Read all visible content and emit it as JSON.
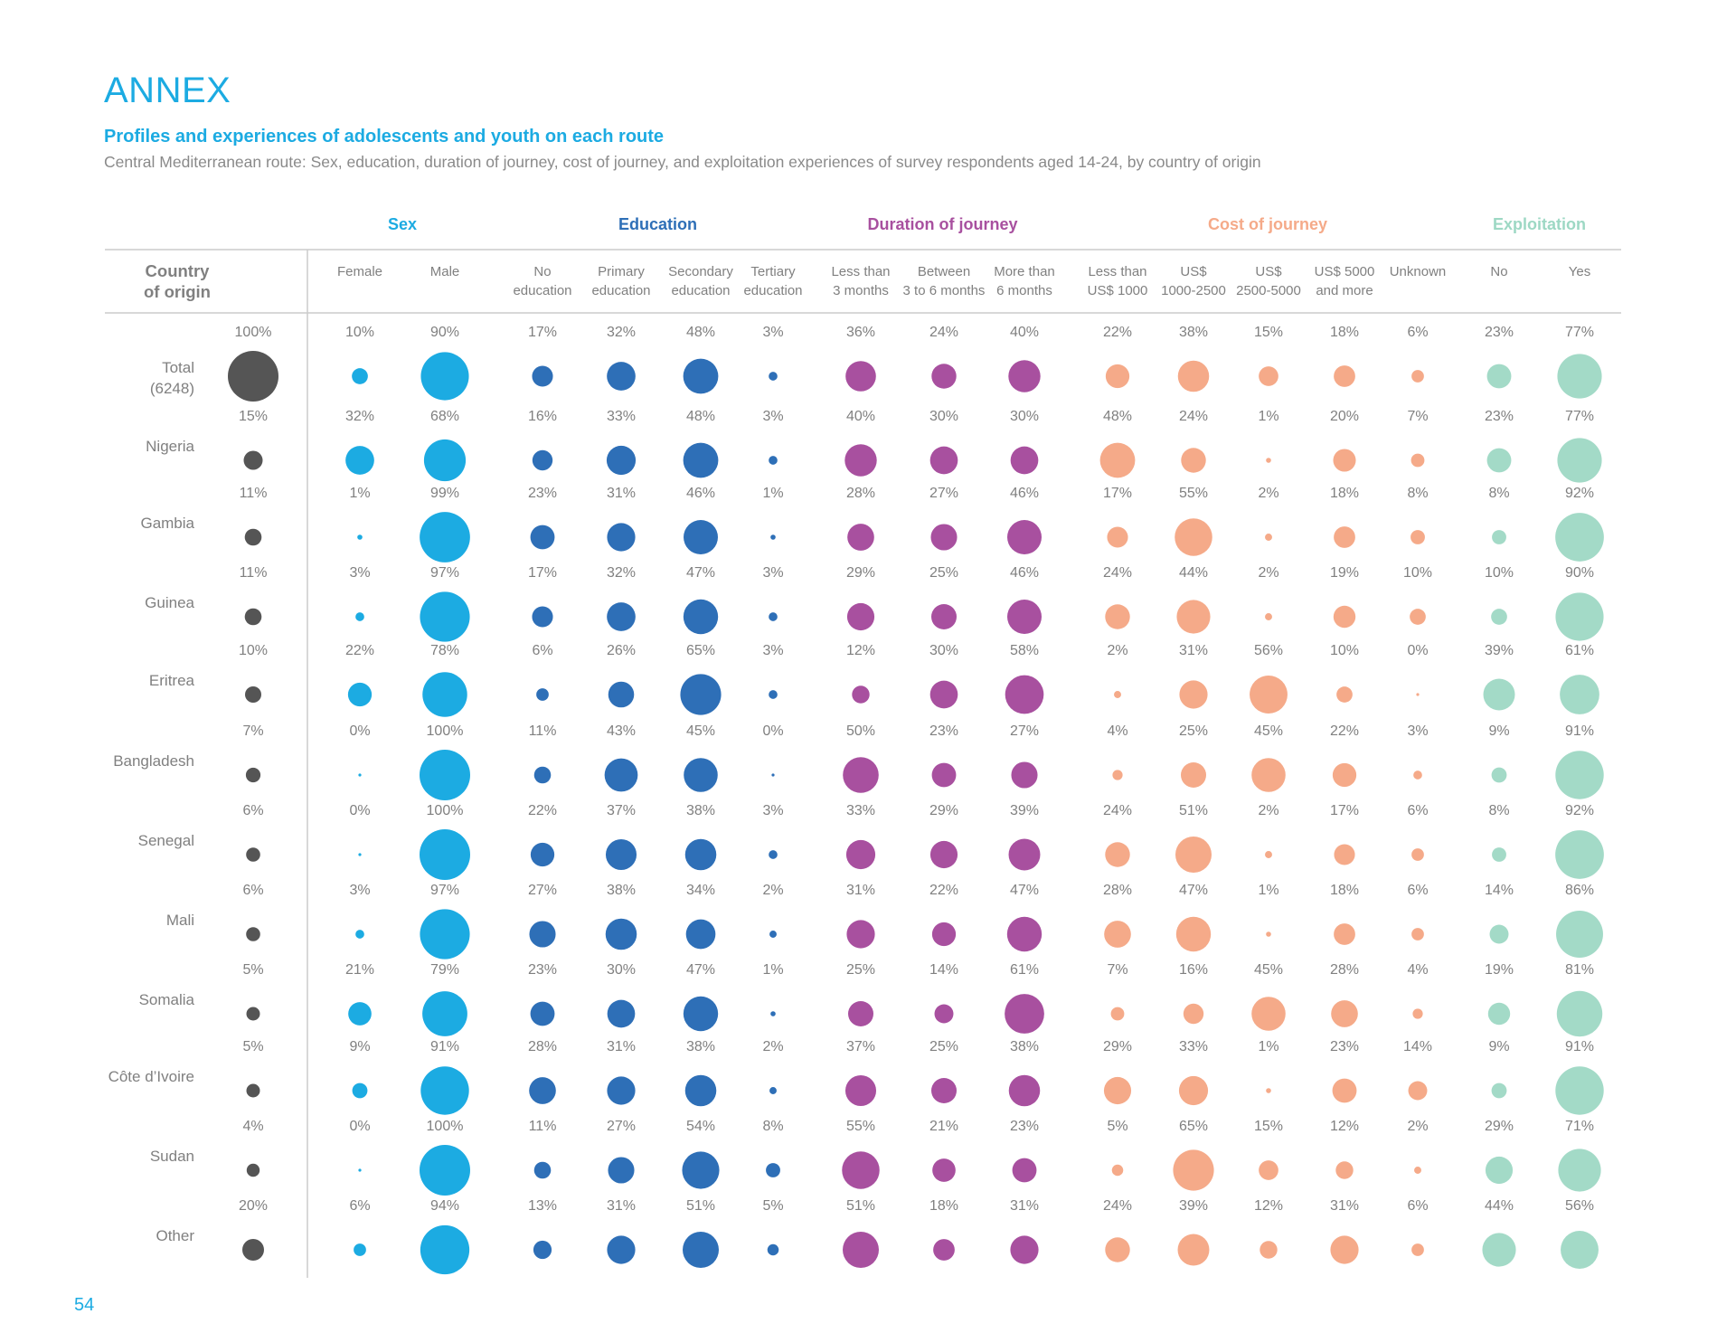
{
  "page": {
    "section": "ANNEX",
    "subtitle": "Profiles and experiences of adolescents and youth on each route",
    "caption": "Central Mediterranean route: Sex, education, duration of journey, cost of journey, and exploitation experiences of survey respondents aged 14-24, by country of origin",
    "page_number": "54"
  },
  "chart_data": {
    "type": "bubble-table",
    "row_header": [
      "Country",
      "of origin"
    ],
    "groups": [
      {
        "name": "Sex",
        "color": "#1CABE2",
        "header_color": "#1CABE2",
        "columns": [
          [
            "Female"
          ],
          [
            "Male"
          ]
        ]
      },
      {
        "name": "Education",
        "color": "#2E6FB7",
        "header_color": "#2E6FB7",
        "columns": [
          [
            "No",
            "education"
          ],
          [
            "Primary",
            "education"
          ],
          [
            "Secondary",
            "education"
          ],
          [
            "Tertiary",
            "education"
          ]
        ]
      },
      {
        "name": "Duration of journey",
        "color": "#A8509F",
        "header_color": "#A8509F",
        "columns": [
          [
            "Less than",
            "3 months"
          ],
          [
            "Between",
            "3 to 6 months"
          ],
          [
            "More than",
            "6 months"
          ]
        ]
      },
      {
        "name": "Cost of journey",
        "color": "#F5AA89",
        "header_color": "#F5AA89",
        "columns": [
          [
            "Less than",
            "US$ 1000"
          ],
          [
            "US$",
            "1000-2500"
          ],
          [
            "US$",
            "2500-5000"
          ],
          [
            "US$ 5000",
            "and more"
          ],
          [
            "Unknown"
          ]
        ]
      },
      {
        "name": "Exploitation",
        "color": "#A3DAC7",
        "header_color": "#9DD8C4",
        "columns": [
          [
            "No"
          ],
          [
            "Yes"
          ]
        ]
      }
    ],
    "share_color": "#555555",
    "rows": [
      {
        "country": [
          "Total",
          "(6248)"
        ],
        "share": 100,
        "values": [
          10,
          90,
          17,
          32,
          48,
          3,
          36,
          24,
          40,
          22,
          38,
          15,
          18,
          6,
          23,
          77
        ]
      },
      {
        "country": [
          "Nigeria"
        ],
        "share": 15,
        "values": [
          32,
          68,
          16,
          33,
          48,
          3,
          40,
          30,
          30,
          48,
          24,
          1,
          20,
          7,
          23,
          77
        ]
      },
      {
        "country": [
          "Gambia"
        ],
        "share": 11,
        "values": [
          1,
          99,
          23,
          31,
          46,
          1,
          28,
          27,
          46,
          17,
          55,
          2,
          18,
          8,
          8,
          92
        ]
      },
      {
        "country": [
          "Guinea"
        ],
        "share": 11,
        "values": [
          3,
          97,
          17,
          32,
          47,
          3,
          29,
          25,
          46,
          24,
          44,
          2,
          19,
          10,
          10,
          90
        ]
      },
      {
        "country": [
          "Eritrea"
        ],
        "share": 10,
        "values": [
          22,
          78,
          6,
          26,
          65,
          3,
          12,
          30,
          58,
          2,
          31,
          56,
          10,
          0,
          39,
          61
        ]
      },
      {
        "country": [
          "Bangladesh"
        ],
        "share": 7,
        "values": [
          0,
          100,
          11,
          43,
          45,
          0,
          50,
          23,
          27,
          4,
          25,
          45,
          22,
          3,
          9,
          91
        ]
      },
      {
        "country": [
          "Senegal"
        ],
        "share": 6,
        "values": [
          0,
          100,
          22,
          37,
          38,
          3,
          33,
          29,
          39,
          24,
          51,
          2,
          17,
          6,
          8,
          92
        ]
      },
      {
        "country": [
          "Mali"
        ],
        "share": 6,
        "values": [
          3,
          97,
          27,
          38,
          34,
          2,
          31,
          22,
          47,
          28,
          47,
          1,
          18,
          6,
          14,
          86
        ]
      },
      {
        "country": [
          "Somalia"
        ],
        "share": 5,
        "values": [
          21,
          79,
          23,
          30,
          47,
          1,
          25,
          14,
          61,
          7,
          16,
          45,
          28,
          4,
          19,
          81
        ]
      },
      {
        "country": [
          "Côte d’Ivoire"
        ],
        "share": 5,
        "values": [
          9,
          91,
          28,
          31,
          38,
          2,
          37,
          25,
          38,
          29,
          33,
          1,
          23,
          14,
          9,
          91
        ]
      },
      {
        "country": [
          "Sudan"
        ],
        "share": 4,
        "values": [
          0,
          100,
          11,
          27,
          54,
          8,
          55,
          21,
          23,
          5,
          65,
          15,
          12,
          2,
          29,
          71
        ]
      },
      {
        "country": [
          "Other"
        ],
        "share": 20,
        "values": [
          6,
          94,
          13,
          31,
          51,
          5,
          51,
          18,
          31,
          24,
          39,
          12,
          31,
          6,
          44,
          56
        ]
      }
    ]
  }
}
